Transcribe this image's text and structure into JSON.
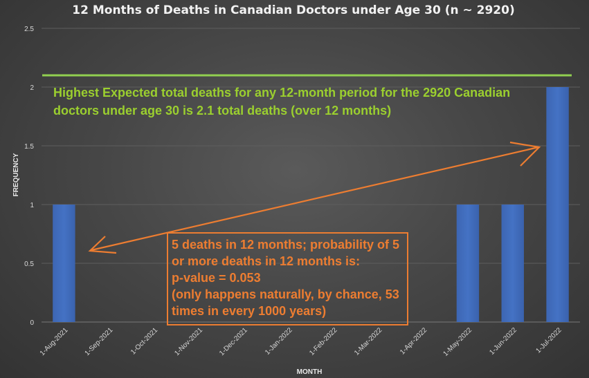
{
  "colors": {
    "bar": "#4472c4",
    "grid": "#5e5e5e",
    "threshold_line": "#92d050",
    "annotation_orange": "#ed7d31"
  },
  "chart_data": {
    "type": "bar",
    "title": "12 Months of Deaths in Canadian Doctors under Age 30 (n ~ 2920)",
    "xlabel": "MONTH",
    "ylabel": "FREQUENCY",
    "ylim": [
      0,
      2.5
    ],
    "yticks": [
      "0",
      "0.5",
      "1",
      "1.5",
      "2",
      "2.5"
    ],
    "yticks_values": [
      0,
      0.5,
      1,
      1.5,
      2,
      2.5
    ],
    "categories": [
      "1-Aug-2021",
      "1-Sep-2021",
      "1-Oct-2021",
      "1-Nov-2021",
      "1-Dec-2021",
      "1-Jan-2022",
      "1-Feb-2022",
      "1-Mar-2022",
      "1-Apr-2022",
      "1-May-2022",
      "1-Jun-2022",
      "1-Jul-2022"
    ],
    "values": [
      1,
      0,
      0,
      0,
      0,
      0,
      0,
      0,
      0,
      1,
      1,
      2
    ],
    "threshold": 2.1,
    "annotations": {
      "threshold_text": [
        "Highest Expected total deaths for any 12-month period for the 2920 Canadian",
        "doctors under age 30 is 2.1 total deaths (over 12 months)"
      ],
      "box_text": [
        "5 deaths in 12 months; probability of 5",
        "or more deaths in 12 months is:",
        "p-value = 0.053",
        "(only happens naturally, by chance, 53",
        "times in every 1000 years)"
      ]
    }
  }
}
